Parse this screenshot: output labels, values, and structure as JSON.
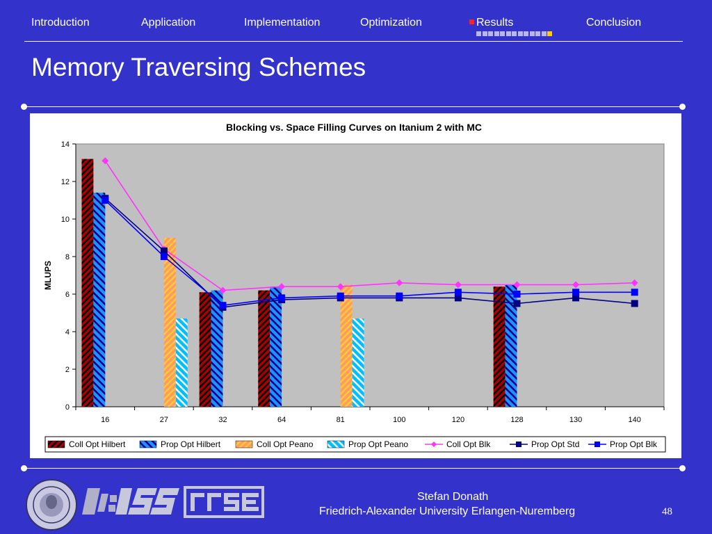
{
  "nav": {
    "items": [
      {
        "label": "Introduction"
      },
      {
        "label": "Application"
      },
      {
        "label": "Implementation"
      },
      {
        "label": "Optimization"
      },
      {
        "label": "Results",
        "active": true
      },
      {
        "label": "Conclusion"
      }
    ],
    "progress": {
      "total": 13,
      "current": 13
    }
  },
  "slide": {
    "title": "Memory Traversing Schemes",
    "author": "Stefan Donath",
    "affiliation": "Friedrich-Alexander University Erlangen-Nuremberg",
    "page_number": "48"
  },
  "colors": {
    "background": "#3333cc",
    "plot_area": "#c0c0c0",
    "coll_opt_hilbert": "#aa0000",
    "prop_opt_hilbert": "#1e90ff",
    "coll_opt_peano": "#ff9966",
    "prop_opt_peano": "#00bfff",
    "coll_opt_blk": "#ff33ff",
    "prop_opt_std": "#000080",
    "prop_opt_blk": "#0000ff"
  },
  "logos": [
    "university-seal-icon",
    "lss-logo-icon",
    "rrze-logo-icon"
  ],
  "chart_data": {
    "type": "bar",
    "title": "Blocking vs. Space Filling Curves on Itanium 2 with MC",
    "xlabel": "",
    "ylabel": "MLUPS",
    "categories": [
      "16",
      "27",
      "32",
      "64",
      "81",
      "100",
      "120",
      "128",
      "130",
      "140"
    ],
    "ylim": [
      0,
      14
    ],
    "yticks": [
      0,
      2,
      4,
      6,
      8,
      10,
      12,
      14
    ],
    "grid": false,
    "legend_position": "bottom",
    "series": [
      {
        "name": "Coll Opt Hilbert",
        "kind": "bar",
        "values": [
          13.2,
          null,
          6.1,
          6.2,
          null,
          null,
          null,
          6.4,
          null,
          null
        ]
      },
      {
        "name": "Prop Opt Hilbert",
        "kind": "bar",
        "values": [
          11.4,
          null,
          6.2,
          6.4,
          null,
          null,
          null,
          6.5,
          null,
          null
        ]
      },
      {
        "name": "Coll Opt Peano",
        "kind": "bar",
        "values": [
          null,
          9.0,
          null,
          null,
          6.5,
          null,
          null,
          null,
          null,
          null
        ]
      },
      {
        "name": "Prop Opt Peano",
        "kind": "bar",
        "values": [
          null,
          4.7,
          null,
          null,
          4.7,
          null,
          null,
          null,
          null,
          null
        ]
      },
      {
        "name": "Coll Opt Blk",
        "kind": "line",
        "values": [
          13.1,
          8.4,
          6.2,
          6.4,
          6.4,
          6.6,
          6.5,
          6.5,
          6.5,
          6.6
        ]
      },
      {
        "name": "Prop Opt Std",
        "kind": "line",
        "values": [
          11.1,
          8.3,
          5.3,
          5.7,
          5.8,
          5.8,
          5.8,
          5.5,
          5.8,
          5.5
        ]
      },
      {
        "name": "Prop Opt Blk",
        "kind": "line",
        "values": [
          11.0,
          8.0,
          5.4,
          5.8,
          5.9,
          5.9,
          6.1,
          6.0,
          6.1,
          6.1
        ]
      }
    ]
  }
}
